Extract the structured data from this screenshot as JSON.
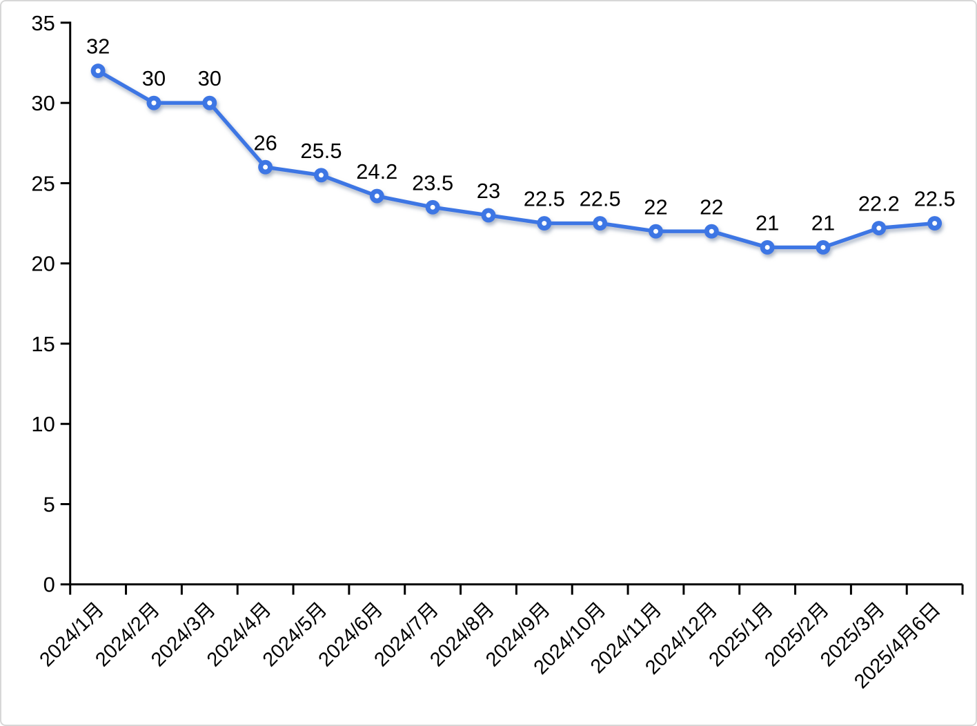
{
  "chart": {
    "background_color": "#ffffff",
    "frame_border_color": "#d7d7d7"
  },
  "chart_data": {
    "type": "line",
    "title": "",
    "xlabel": "",
    "ylabel": "",
    "categories": [
      "2024/1月",
      "2024/2月",
      "2024/3月",
      "2024/4月",
      "2024/5月",
      "2024/6月",
      "2024/7月",
      "2024/8月",
      "2024/9月",
      "2024/10月",
      "2024/11月",
      "2024/12月",
      "2025/1月",
      "2025/2月",
      "2025/3月",
      "2025/4月6日"
    ],
    "values": [
      32,
      30,
      30,
      26,
      25.5,
      24.2,
      23.5,
      23,
      22.5,
      22.5,
      22,
      22,
      21,
      21,
      22.2,
      22.5
    ],
    "data_labels": [
      "32",
      "30",
      "30",
      "26",
      "25.5",
      "24.2",
      "23.5",
      "23",
      "22.5",
      "22.5",
      "22",
      "22",
      "21",
      "21",
      "22.2",
      "22.5"
    ],
    "ylim": [
      0,
      35
    ],
    "yticks": [
      0,
      5,
      10,
      15,
      20,
      25,
      30,
      35
    ],
    "grid": false,
    "legend": "none",
    "x_tick_label_rotation": -45,
    "line_color": "#3d76e4",
    "marker_fill": "#3d76e4",
    "marker_center_color": "#ffffff",
    "shadow_color": "#9aa6ba",
    "axis_color": "#000000",
    "text_color": "#000000"
  }
}
